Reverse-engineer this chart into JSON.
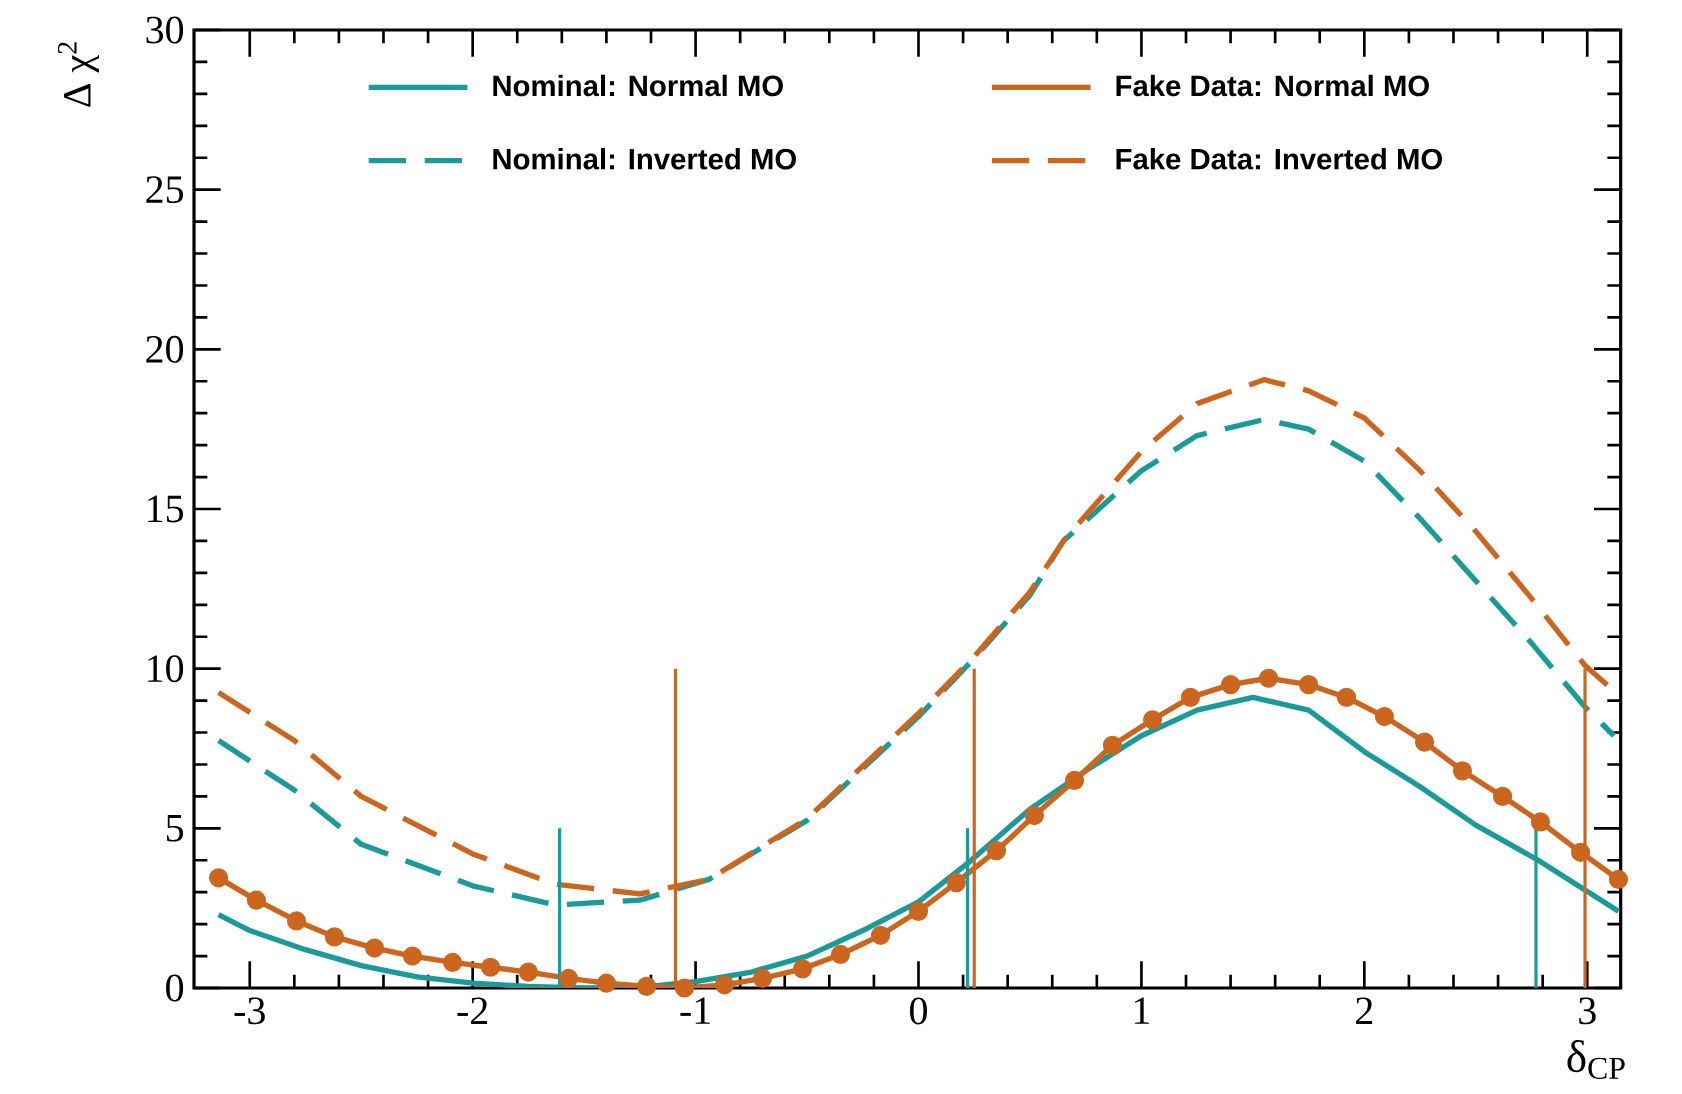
{
  "chart_data": {
    "type": "line",
    "xlabel": "δ$_{CP}$",
    "ylabel": "Δ χ$^{2}$",
    "xlim": [
      -3.25,
      3.15
    ],
    "ylim": [
      0,
      30
    ],
    "xticks": [
      -3,
      -2,
      -1,
      0,
      1,
      2,
      3
    ],
    "yticks": [
      0,
      5,
      10,
      15,
      20,
      25,
      30
    ],
    "grid": false,
    "legend": "top",
    "series": [
      {
        "name": "Nominal: Normal MO",
        "color": "#1a9a98",
        "line_style": "solid",
        "marker": "none",
        "x": [
          -3.14,
          -3,
          -2.75,
          -2.5,
          -2.25,
          -2,
          -1.75,
          -1.5,
          -1.25,
          -1,
          -0.75,
          -0.5,
          -0.25,
          0,
          0.22,
          0.5,
          0.75,
          1,
          1.25,
          1.5,
          1.75,
          2,
          2.25,
          2.5,
          2.78,
          3.14
        ],
        "values": [
          2.3,
          1.8,
          1.2,
          0.7,
          0.35,
          0.15,
          0.05,
          0,
          0.02,
          0.2,
          0.5,
          1.0,
          1.8,
          2.7,
          3.9,
          5.6,
          6.8,
          7.9,
          8.7,
          9.1,
          8.7,
          7.4,
          6.3,
          5.1,
          4.0,
          2.4
        ]
      },
      {
        "name": "Fake Data: Normal MO",
        "color": "#cc661e",
        "line_style": "solid",
        "marker": "circle",
        "x": [
          -3.14,
          -2.97,
          -2.79,
          -2.62,
          -2.44,
          -2.27,
          -2.09,
          -1.92,
          -1.75,
          -1.57,
          -1.4,
          -1.22,
          -1.05,
          -0.87,
          -0.7,
          -0.52,
          -0.35,
          -0.17,
          0,
          0.17,
          0.35,
          0.52,
          0.7,
          0.87,
          1.05,
          1.22,
          1.4,
          1.57,
          1.75,
          1.92,
          2.09,
          2.27,
          2.44,
          2.62,
          2.79,
          2.97,
          3.14
        ],
        "values": [
          3.45,
          2.75,
          2.1,
          1.6,
          1.25,
          1.0,
          0.8,
          0.65,
          0.5,
          0.3,
          0.15,
          0.05,
          0,
          0.1,
          0.3,
          0.6,
          1.05,
          1.65,
          2.4,
          3.3,
          4.3,
          5.4,
          6.5,
          7.6,
          8.4,
          9.1,
          9.5,
          9.7,
          9.5,
          9.1,
          8.5,
          7.7,
          6.8,
          6.0,
          5.2,
          4.25,
          3.4
        ]
      },
      {
        "name": "Nominal: Inverted MO",
        "color": "#1a9a98",
        "line_style": "dashed",
        "marker": "none",
        "x": [
          -3.14,
          -2.8,
          -2.5,
          -2,
          -1.63,
          -1.25,
          -0.94,
          -0.5,
          0,
          0.24,
          0.5,
          0.65,
          1,
          1.25,
          1.55,
          1.75,
          2,
          2.25,
          2.5,
          2.75,
          2.99,
          3.12
        ],
        "values": [
          7.75,
          6.2,
          4.5,
          3.2,
          2.6,
          2.75,
          3.4,
          5.25,
          8.5,
          10.25,
          12.3,
          14.0,
          16.2,
          17.3,
          17.8,
          17.5,
          16.5,
          14.7,
          12.75,
          10.8,
          8.8,
          7.9
        ]
      },
      {
        "name": "Fake Data: Inverted MO",
        "color": "#cc661e",
        "line_style": "dashed",
        "marker": "none",
        "x": [
          -3.14,
          -2.8,
          -2.5,
          -2,
          -1.63,
          -1.25,
          -0.94,
          -0.5,
          0,
          0.24,
          0.5,
          0.65,
          1,
          1.25,
          1.55,
          1.75,
          2,
          2.25,
          2.5,
          2.75,
          2.99,
          3.12
        ],
        "values": [
          9.25,
          7.75,
          6.0,
          4.2,
          3.25,
          2.95,
          3.4,
          5.3,
          8.6,
          10.3,
          12.4,
          14.0,
          16.8,
          18.3,
          19.05,
          18.7,
          17.85,
          16.2,
          14.3,
          12.2,
          10.1,
          9.3
        ]
      },
      {
        "color": "#1a9a98",
        "line_style": "solid",
        "marker": "none",
        "x": [
          -1.61,
          -1.61
        ],
        "values": [
          0,
          5
        ]
      },
      {
        "color": "#1a9a98",
        "line_style": "solid",
        "marker": "none",
        "x": [
          0.22,
          0.22
        ],
        "values": [
          0,
          5
        ]
      },
      {
        "color": "#1a9a98",
        "line_style": "solid",
        "marker": "none",
        "x": [
          2.77,
          2.77
        ],
        "values": [
          0,
          5
        ]
      },
      {
        "color": "#cc661e",
        "line_style": "solid",
        "marker": "none",
        "x": [
          -1.09,
          -1.09
        ],
        "values": [
          0,
          10
        ]
      },
      {
        "color": "#cc661e",
        "line_style": "solid",
        "marker": "none",
        "x": [
          0.25,
          0.25
        ],
        "values": [
          0,
          10
        ]
      },
      {
        "color": "#cc661e",
        "line_style": "solid",
        "marker": "none",
        "x": [
          2.99,
          2.99
        ],
        "values": [
          0,
          10
        ]
      }
    ]
  }
}
